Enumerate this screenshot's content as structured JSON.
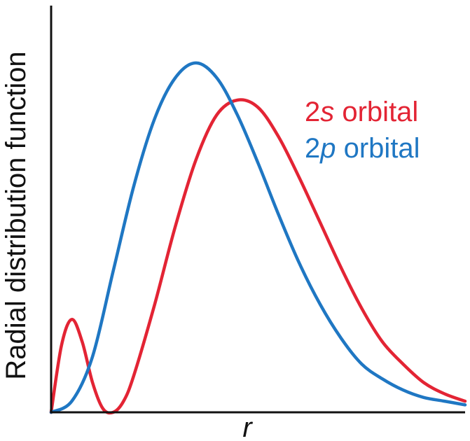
{
  "chart_data": {
    "type": "line",
    "xlabel": "r",
    "ylabel": "Radial distribution function",
    "x_ticks": "none",
    "y_ticks": "none",
    "grid": false,
    "legend_placement": "top-right",
    "xlim": [
      0,
      20
    ],
    "ylim": [
      0,
      1.0
    ],
    "series": [
      {
        "name": "2s orbital",
        "label_prefix": "2",
        "label_italic": "s",
        "label_suffix": " orbital",
        "color": "#e32434",
        "x": [
          0,
          0.5,
          1.0,
          1.5,
          2.0,
          2.5,
          3.0,
          3.5,
          4,
          5,
          6,
          7,
          8,
          9,
          10,
          11,
          12,
          13,
          14,
          15,
          16,
          17,
          18,
          19,
          20
        ],
        "y": [
          0,
          0.18,
          0.25,
          0.19,
          0.08,
          0.01,
          0.0,
          0.03,
          0.1,
          0.29,
          0.5,
          0.68,
          0.8,
          0.84,
          0.82,
          0.74,
          0.63,
          0.51,
          0.39,
          0.28,
          0.19,
          0.13,
          0.08,
          0.05,
          0.03
        ]
      },
      {
        "name": "2p orbital",
        "label_prefix": "2",
        "label_italic": "p",
        "label_suffix": " orbital",
        "color": "#1f77c3",
        "x": [
          0,
          1,
          2,
          3,
          4,
          5,
          6,
          7,
          8,
          9,
          10,
          11,
          12,
          13,
          14,
          15,
          16,
          17,
          18,
          19,
          20
        ],
        "y": [
          0,
          0.03,
          0.15,
          0.38,
          0.61,
          0.79,
          0.9,
          0.94,
          0.9,
          0.8,
          0.67,
          0.53,
          0.4,
          0.29,
          0.2,
          0.13,
          0.09,
          0.06,
          0.04,
          0.03,
          0.02
        ]
      }
    ]
  }
}
